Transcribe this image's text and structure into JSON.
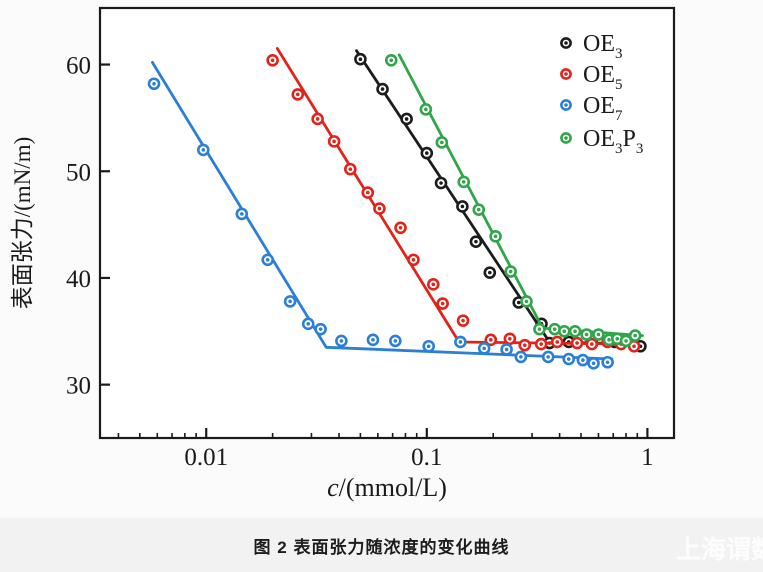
{
  "page": {
    "background": "#fbfbfb",
    "strip_background": "#f2f2f2"
  },
  "caption": {
    "text": "图 2  表面张力随浓度的变化曲线"
  },
  "watermark": {
    "text": "上海谓数"
  },
  "chart_data": {
    "type": "scatter",
    "title": "",
    "xlabel": "c/(mmol/L)",
    "ylabel": "表面张力/(mN/m)",
    "x_scale": "log",
    "xlim": [
      0.0033,
      1.32
    ],
    "ylim": [
      25,
      65.3
    ],
    "x_ticks": [
      0.01,
      0.1,
      1
    ],
    "x_tick_labels": [
      "0.01",
      "0.1",
      "1"
    ],
    "y_ticks": [
      30,
      40,
      50,
      60
    ],
    "y_tick_labels": [
      "30",
      "40",
      "50",
      "60"
    ],
    "grid": false,
    "legend_position": "top-right",
    "frame_color": "#1a1a1a",
    "series": [
      {
        "name": "OE3",
        "label_parts": [
          [
            "OE",
            "3"
          ]
        ],
        "color": "#1c1c1c",
        "points": [
          [
            0.05,
            60.5
          ],
          [
            0.063,
            57.7
          ],
          [
            0.081,
            54.9
          ],
          [
            0.1,
            51.7
          ],
          [
            0.116,
            48.9
          ],
          [
            0.145,
            46.7
          ],
          [
            0.167,
            43.4
          ],
          [
            0.193,
            40.5
          ],
          [
            0.261,
            37.7
          ],
          [
            0.331,
            35.7
          ],
          [
            0.36,
            33.9
          ],
          [
            0.44,
            34.0
          ],
          [
            0.56,
            34.2
          ],
          [
            0.71,
            34.0
          ],
          [
            0.93,
            33.6
          ]
        ],
        "line": [
          [
            0.048,
            61.3
          ],
          [
            0.36,
            34.0
          ],
          [
            0.92,
            33.8
          ]
        ]
      },
      {
        "name": "OE5",
        "label_parts": [
          [
            "OE",
            "5"
          ]
        ],
        "color": "#e2231a",
        "points": [
          [
            0.02,
            60.4
          ],
          [
            0.026,
            57.2
          ],
          [
            0.032,
            54.9
          ],
          [
            0.038,
            52.8
          ],
          [
            0.045,
            50.2
          ],
          [
            0.054,
            48.0
          ],
          [
            0.061,
            46.5
          ],
          [
            0.076,
            44.7
          ],
          [
            0.087,
            41.7
          ],
          [
            0.107,
            39.4
          ],
          [
            0.118,
            37.6
          ],
          [
            0.146,
            36.0
          ],
          [
            0.195,
            34.2
          ],
          [
            0.238,
            34.3
          ],
          [
            0.278,
            33.7
          ],
          [
            0.33,
            33.8
          ],
          [
            0.39,
            34.0
          ],
          [
            0.48,
            33.9
          ],
          [
            0.56,
            33.8
          ],
          [
            0.66,
            34.0
          ],
          [
            0.76,
            33.8
          ],
          [
            0.87,
            33.6
          ]
        ],
        "line": [
          [
            0.021,
            61.5
          ],
          [
            0.14,
            34.0
          ],
          [
            0.86,
            33.8
          ]
        ]
      },
      {
        "name": "OE7",
        "label_parts": [
          [
            "OE",
            "7"
          ]
        ],
        "color": "#2b7fd4",
        "points": [
          [
            0.0058,
            58.2
          ],
          [
            0.0097,
            52.0
          ],
          [
            0.0145,
            46.0
          ],
          [
            0.019,
            41.7
          ],
          [
            0.024,
            37.8
          ],
          [
            0.029,
            35.7
          ],
          [
            0.033,
            35.2
          ],
          [
            0.041,
            34.1
          ],
          [
            0.057,
            34.2
          ],
          [
            0.072,
            34.1
          ],
          [
            0.102,
            33.6
          ],
          [
            0.142,
            34.0
          ],
          [
            0.182,
            33.4
          ],
          [
            0.23,
            33.3
          ],
          [
            0.267,
            32.6
          ],
          [
            0.355,
            32.6
          ],
          [
            0.44,
            32.4
          ],
          [
            0.51,
            32.3
          ],
          [
            0.57,
            32.0
          ],
          [
            0.66,
            32.1
          ]
        ],
        "line": [
          [
            0.0057,
            60.2
          ],
          [
            0.035,
            33.5
          ],
          [
            0.69,
            32.4
          ]
        ]
      },
      {
        "name": "OE3P3",
        "label_parts": [
          [
            "OE",
            "3"
          ],
          [
            "P",
            "3"
          ]
        ],
        "color": "#2fa64a",
        "points": [
          [
            0.069,
            60.4
          ],
          [
            0.099,
            55.8
          ],
          [
            0.117,
            52.7
          ],
          [
            0.147,
            49.0
          ],
          [
            0.172,
            46.4
          ],
          [
            0.205,
            43.9
          ],
          [
            0.24,
            40.6
          ],
          [
            0.283,
            37.8
          ],
          [
            0.324,
            35.2
          ],
          [
            0.38,
            35.2
          ],
          [
            0.42,
            35.0
          ],
          [
            0.47,
            35.0
          ],
          [
            0.53,
            34.7
          ],
          [
            0.6,
            34.7
          ],
          [
            0.67,
            34.2
          ],
          [
            0.73,
            34.3
          ],
          [
            0.8,
            34.1
          ],
          [
            0.88,
            34.6
          ]
        ],
        "line": [
          [
            0.075,
            60.9
          ],
          [
            0.335,
            35.3
          ],
          [
            0.95,
            34.6
          ]
        ]
      }
    ]
  }
}
